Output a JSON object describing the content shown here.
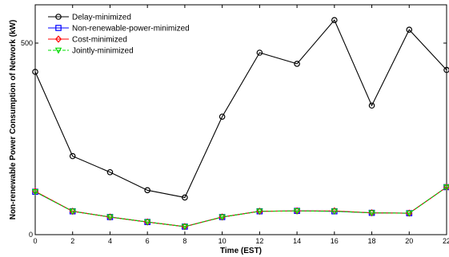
{
  "chart_data": {
    "type": "line",
    "xlabel": "Time (EST)",
    "ylabel": "Non-renewable Power Consumption of Network (kW)",
    "x": [
      0,
      2,
      4,
      6,
      8,
      10,
      12,
      14,
      16,
      18,
      20,
      22
    ],
    "xticks": [
      "0",
      "2",
      "4",
      "6",
      "8",
      "10",
      "12",
      "14",
      "16",
      "18",
      "20",
      "22"
    ],
    "yticks": [
      "0",
      "500"
    ],
    "xlim": [
      0,
      22
    ],
    "ylim": [
      0,
      600
    ],
    "grid": false,
    "legend_position": "top-left",
    "series": [
      {
        "name": "Delay-minimized",
        "color": "#000000",
        "marker": "circle",
        "values": [
          425,
          205,
          163,
          116,
          97,
          308,
          475,
          446,
          560,
          337,
          535,
          430
        ]
      },
      {
        "name": "Non-renewable-power-minimized",
        "color": "#0000ff",
        "marker": "square",
        "values": [
          112,
          61,
          46,
          33,
          21,
          46,
          61,
          62,
          61,
          57,
          56,
          124
        ]
      },
      {
        "name": "Cost-minimized",
        "color": "#ff0000",
        "marker": "diamond",
        "values": [
          113,
          61,
          46,
          33,
          21,
          46,
          61,
          62,
          62,
          57,
          56,
          124
        ]
      },
      {
        "name": "Jointly-minimized",
        "color": "#00dd00",
        "marker": "triangle-down",
        "dashed": true,
        "values": [
          112,
          61,
          46,
          33,
          21,
          46,
          61,
          62,
          61,
          57,
          56,
          124
        ]
      }
    ]
  }
}
